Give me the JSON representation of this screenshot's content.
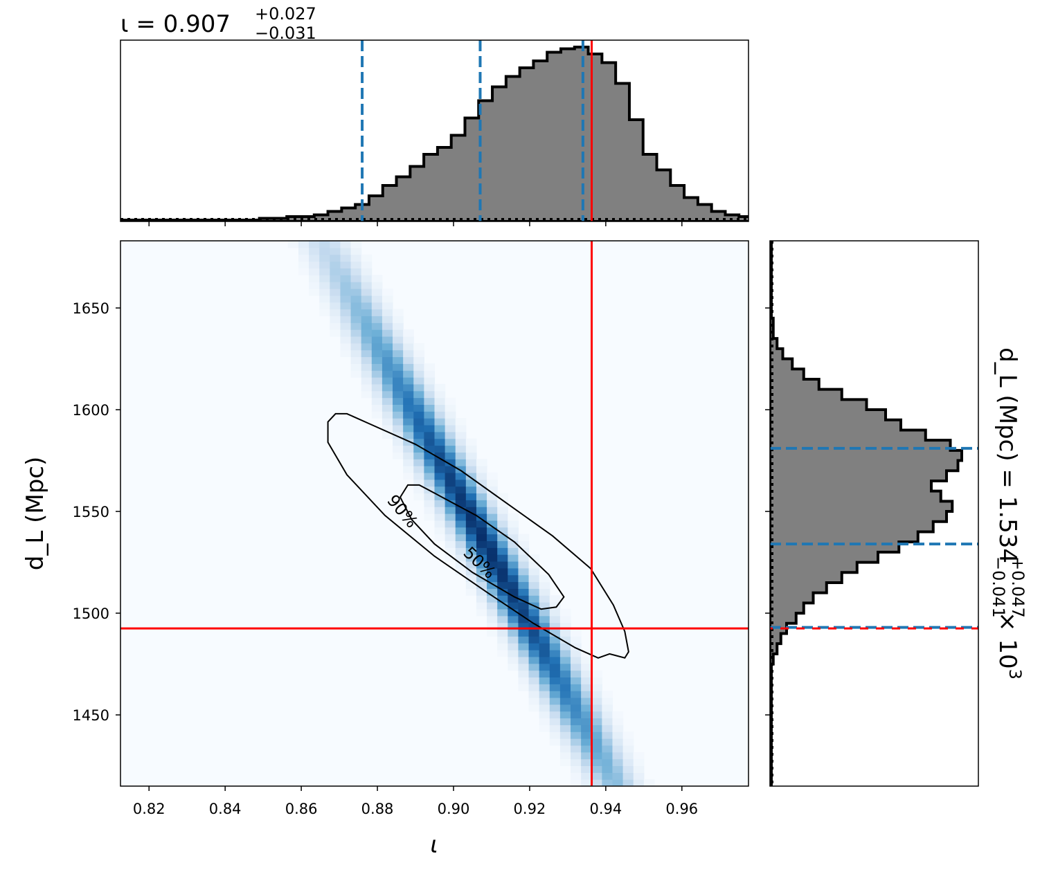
{
  "chart_data": {
    "type": "corner",
    "panels": {
      "top_histogram": {
        "type": "histogram",
        "title": {
          "variable": "ι",
          "median": "0.907",
          "plus": "+0.027",
          "minus": "−0.031"
        },
        "bin_edges_start": 0.813,
        "bin_width": 0.0036,
        "heights": [
          0.0,
          0.0,
          0.0,
          0.0,
          0.0,
          0.0,
          0.0,
          0.0,
          0.0,
          0.0,
          0.01,
          0.01,
          0.02,
          0.02,
          0.03,
          0.05,
          0.07,
          0.09,
          0.14,
          0.2,
          0.25,
          0.31,
          0.38,
          0.42,
          0.49,
          0.59,
          0.69,
          0.77,
          0.83,
          0.88,
          0.92,
          0.97,
          0.99,
          1.0,
          0.96,
          0.91,
          0.79,
          0.58,
          0.38,
          0.29,
          0.2,
          0.13,
          0.09,
          0.05,
          0.03,
          0.02,
          0.01,
          0.01,
          0.0,
          0.0,
          0.0,
          0.0,
          0.0,
          0.0,
          0.0,
          0.0,
          0.0,
          0.0,
          0.0,
          0.0
        ],
        "quantile_lines": [
          0.876,
          0.907,
          0.934
        ],
        "true_value": 0.9363,
        "xlim": [
          0.8125,
          0.9775
        ]
      },
      "joint_2d": {
        "type": "heatmap",
        "xlabel": "ι",
        "ylabel": "d_L (Mpc)",
        "xlim": [
          0.8125,
          0.9775
        ],
        "ylim": [
          1415,
          1683
        ],
        "x_ticks": [
          "0.82",
          "0.84",
          "0.86",
          "0.88",
          "0.90",
          "0.92",
          "0.94",
          "0.96"
        ],
        "y_ticks": [
          "1450",
          "1500",
          "1550",
          "1600",
          "1650"
        ],
        "density_center": [
          0.9085,
          1534
        ],
        "density_slope": -3400,
        "contours": [
          {
            "label": "90%",
            "points": [
              [
                0.867,
                1594
              ],
              [
                0.869,
                1598
              ],
              [
                0.872,
                1598
              ],
              [
                0.878,
                1593
              ],
              [
                0.89,
                1583
              ],
              [
                0.902,
                1570
              ],
              [
                0.914,
                1554
              ],
              [
                0.926,
                1538
              ],
              [
                0.936,
                1522
              ],
              [
                0.942,
                1504
              ],
              [
                0.945,
                1491
              ],
              [
                0.946,
                1481
              ],
              [
                0.945,
                1478
              ],
              [
                0.941,
                1480
              ],
              [
                0.938,
                1478
              ],
              [
                0.932,
                1483
              ],
              [
                0.921,
                1495
              ],
              [
                0.909,
                1510
              ],
              [
                0.895,
                1528
              ],
              [
                0.882,
                1548
              ],
              [
                0.872,
                1568
              ],
              [
                0.867,
                1584
              ]
            ]
          },
          {
            "label": "50%",
            "points": [
              [
                0.886,
                1557
              ],
              [
                0.888,
                1563
              ],
              [
                0.891,
                1563
              ],
              [
                0.896,
                1558
              ],
              [
                0.906,
                1548
              ],
              [
                0.916,
                1535
              ],
              [
                0.925,
                1519
              ],
              [
                0.929,
                1508
              ],
              [
                0.927,
                1503
              ],
              [
                0.923,
                1502
              ],
              [
                0.916,
                1508
              ],
              [
                0.905,
                1520
              ],
              [
                0.895,
                1534
              ],
              [
                0.889,
                1546
              ]
            ]
          }
        ],
        "true_value": {
          "x": 0.9363,
          "y": 1492.5
        }
      },
      "right_histogram": {
        "type": "histogram",
        "orientation": "horizontal",
        "title": {
          "variable": "d_L (Mpc)",
          "median": "1.534",
          "plus": "+0.047",
          "minus": "−0.041",
          "multiplier": "× 10",
          "exponent": "3"
        },
        "bin_edges_start": 1415,
        "bin_width": 5,
        "heights": [
          0.0,
          0.0,
          0.0,
          0.0,
          0.0,
          0.0,
          0.0,
          0.0,
          0.0,
          0.0,
          0.0,
          0.0,
          0.01,
          0.03,
          0.05,
          0.08,
          0.13,
          0.17,
          0.22,
          0.29,
          0.37,
          0.45,
          0.56,
          0.67,
          0.77,
          0.85,
          0.92,
          0.95,
          0.89,
          0.84,
          0.92,
          0.98,
          1.0,
          0.94,
          0.81,
          0.68,
          0.6,
          0.5,
          0.37,
          0.25,
          0.17,
          0.11,
          0.06,
          0.03,
          0.01,
          0.01,
          0.0,
          0.0,
          0.0,
          0.0,
          0.0,
          0.0,
          0.0,
          0.0
        ],
        "quantile_lines": [
          1493,
          1534,
          1581
        ],
        "true_value": 1492.5,
        "ylim": [
          1415,
          1683
        ]
      }
    }
  }
}
